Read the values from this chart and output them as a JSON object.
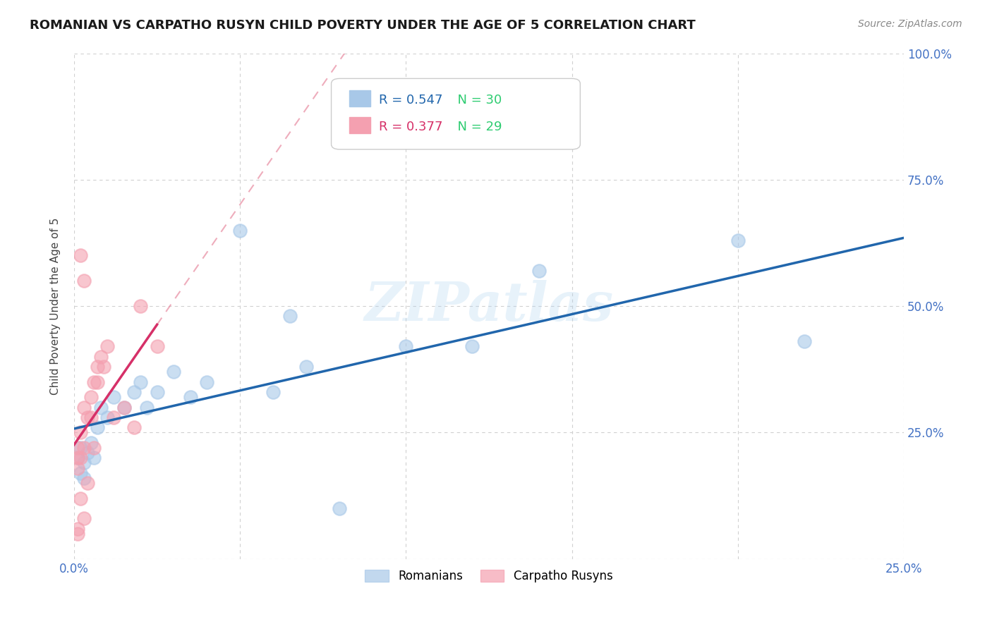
{
  "title": "ROMANIAN VS CARPATHO RUSYN CHILD POVERTY UNDER THE AGE OF 5 CORRELATION CHART",
  "source": "Source: ZipAtlas.com",
  "ylabel": "Child Poverty Under the Age of 5",
  "xlim": [
    0.0,
    0.25
  ],
  "ylim": [
    0.0,
    1.0
  ],
  "xtick_positions": [
    0.0,
    0.05,
    0.1,
    0.15,
    0.2,
    0.25
  ],
  "xticklabels": [
    "0.0%",
    "",
    "",
    "",
    "",
    "25.0%"
  ],
  "ytick_positions": [
    0.0,
    0.25,
    0.5,
    0.75,
    1.0
  ],
  "yticklabels": [
    "",
    "25.0%",
    "50.0%",
    "75.0%",
    "100.0%"
  ],
  "romanian_x": [
    0.001,
    0.002,
    0.002,
    0.003,
    0.003,
    0.004,
    0.005,
    0.006,
    0.007,
    0.008,
    0.01,
    0.012,
    0.015,
    0.018,
    0.02,
    0.022,
    0.025,
    0.03,
    0.035,
    0.04,
    0.05,
    0.06,
    0.065,
    0.07,
    0.08,
    0.1,
    0.12,
    0.14,
    0.2,
    0.22
  ],
  "romanian_y": [
    0.2,
    0.22,
    0.17,
    0.19,
    0.16,
    0.21,
    0.23,
    0.2,
    0.26,
    0.3,
    0.28,
    0.32,
    0.3,
    0.33,
    0.35,
    0.3,
    0.33,
    0.37,
    0.32,
    0.35,
    0.65,
    0.33,
    0.48,
    0.38,
    0.1,
    0.42,
    0.42,
    0.57,
    0.63,
    0.43
  ],
  "rusyn_x": [
    0.001,
    0.001,
    0.001,
    0.001,
    0.002,
    0.002,
    0.002,
    0.003,
    0.003,
    0.003,
    0.004,
    0.004,
    0.005,
    0.005,
    0.006,
    0.006,
    0.007,
    0.007,
    0.008,
    0.009,
    0.01,
    0.012,
    0.015,
    0.018,
    0.02,
    0.025,
    0.003,
    0.002,
    0.001
  ],
  "rusyn_y": [
    0.22,
    0.2,
    0.18,
    0.06,
    0.25,
    0.2,
    0.12,
    0.3,
    0.22,
    0.08,
    0.28,
    0.15,
    0.32,
    0.28,
    0.35,
    0.22,
    0.38,
    0.35,
    0.4,
    0.38,
    0.42,
    0.28,
    0.3,
    0.26,
    0.5,
    0.42,
    0.55,
    0.6,
    0.05
  ],
  "romanian_marker_color": "#a8c8e8",
  "romanian_edge_color": "#a8c8e8",
  "rusyn_marker_color": "#f4a0b0",
  "rusyn_edge_color": "#f4a0b0",
  "romanian_line_color": "#2166ac",
  "rusyn_solid_line_color": "#d63068",
  "rusyn_dashed_line_color": "#e88aa0",
  "legend_r_romanian": "0.547",
  "legend_n_romanian": "30",
  "legend_r_rusyn": "0.377",
  "legend_n_rusyn": "29",
  "watermark": "ZIPatlas",
  "background_color": "#ffffff",
  "grid_color": "#d0d0d0",
  "tick_label_color": "#4472c4",
  "title_color": "#1a1a1a",
  "source_color": "#888888",
  "ylabel_color": "#444444"
}
